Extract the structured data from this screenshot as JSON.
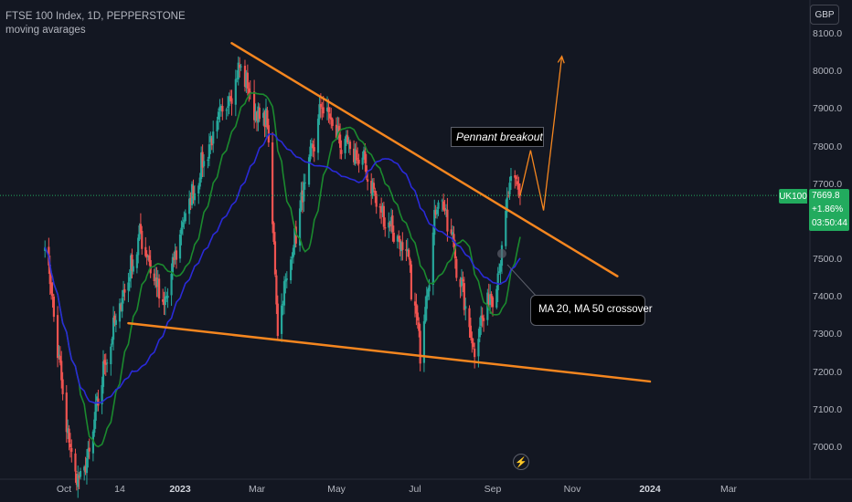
{
  "header": {
    "symbol_line": "FTSE 100 Index, 1D, PEPPERSTONE",
    "indicator_line": "moving avarages"
  },
  "currency_button": "GBP",
  "price_badge": {
    "symbol": "UK100",
    "price": "7669.8",
    "change": "+1.86%",
    "countdown": "03:50:44",
    "color": "#22ab5e"
  },
  "annotations": {
    "pennant": "Pennant breakout",
    "crossover": "MA 20, MA 50 crossover"
  },
  "icons": {
    "flash": "lightning-icon"
  },
  "colors": {
    "background": "#131722",
    "bull_candle": "#26a69a",
    "bear_candle": "#ef5350",
    "ma20": "#1b8a2e",
    "ma50": "#2a2ad8",
    "trendline": "#f5861f"
  },
  "chart_data": {
    "type": "candlestick",
    "title": "FTSE 100 Index, 1D, PEPPERSTONE",
    "y_ticks": [
      "8100.0",
      "8000.0",
      "7900.0",
      "7800.0",
      "7700.0",
      "7600.0",
      "7500.0",
      "7400.0",
      "7300.0",
      "7200.0",
      "7100.0",
      "7000.0"
    ],
    "x_ticks": [
      {
        "label": "Oct",
        "bold": false
      },
      {
        "label": "14",
        "bold": false
      },
      {
        "label": "2023",
        "bold": true
      },
      {
        "label": "Mar",
        "bold": false
      },
      {
        "label": "May",
        "bold": false
      },
      {
        "label": "Jul",
        "bold": false
      },
      {
        "label": "Sep",
        "bold": false
      },
      {
        "label": "Nov",
        "bold": false
      },
      {
        "label": "2024",
        "bold": true
      },
      {
        "label": "Mar",
        "bold": false
      }
    ],
    "ylim": [
      6930,
      8135
    ],
    "last_price": 7669.8,
    "series": [
      {
        "name": "MA 20",
        "color": "#1b8a2e"
      },
      {
        "name": "MA 50",
        "color": "#2a2ad8"
      }
    ],
    "price_path": [
      {
        "date": "2022-09-16",
        "price": 7560
      },
      {
        "date": "2022-10-03",
        "price": 7040
      },
      {
        "date": "2022-10-12",
        "price": 6900
      },
      {
        "date": "2022-10-20",
        "price": 6960
      },
      {
        "date": "2022-11-01",
        "price": 7200
      },
      {
        "date": "2022-11-15",
        "price": 7380
      },
      {
        "date": "2022-12-01",
        "price": 7560
      },
      {
        "date": "2022-12-20",
        "price": 7360
      },
      {
        "date": "2023-01-03",
        "price": 7580
      },
      {
        "date": "2023-01-20",
        "price": 7760
      },
      {
        "date": "2023-02-17",
        "price": 8010
      },
      {
        "date": "2023-02-28",
        "price": 7880
      },
      {
        "date": "2023-03-09",
        "price": 7860
      },
      {
        "date": "2023-03-17",
        "price": 7320
      },
      {
        "date": "2023-04-05",
        "price": 7660
      },
      {
        "date": "2023-04-20",
        "price": 7910
      },
      {
        "date": "2023-05-05",
        "price": 7800
      },
      {
        "date": "2023-05-23",
        "price": 7750
      },
      {
        "date": "2023-06-05",
        "price": 7620
      },
      {
        "date": "2023-06-15",
        "price": 7580
      },
      {
        "date": "2023-06-28",
        "price": 7480
      },
      {
        "date": "2023-07-07",
        "price": 7260
      },
      {
        "date": "2023-07-21",
        "price": 7680
      },
      {
        "date": "2023-08-01",
        "price": 7540
      },
      {
        "date": "2023-08-17",
        "price": 7260
      },
      {
        "date": "2023-08-25",
        "price": 7350
      },
      {
        "date": "2023-09-05",
        "price": 7450
      },
      {
        "date": "2023-09-15",
        "price": 7710
      },
      {
        "date": "2023-09-22",
        "price": 7669.8
      }
    ],
    "trendlines": [
      {
        "name": "upper",
        "from": {
          "date": "2023-02-10",
          "price": 8075
        },
        "to": {
          "date": "2023-12-07",
          "price": 7455
        }
      },
      {
        "name": "lower",
        "from": {
          "date": "2022-11-21",
          "price": 7330
        },
        "to": {
          "date": "2024-01-02",
          "price": 7175
        }
      }
    ],
    "projection": [
      {
        "date": "2023-09-22",
        "price": 7670
      },
      {
        "date": "2023-09-30",
        "price": 7790
      },
      {
        "date": "2023-10-10",
        "price": 7630
      },
      {
        "date": "2023-10-24",
        "price": 8040
      }
    ],
    "grid": false,
    "legend": "none"
  }
}
